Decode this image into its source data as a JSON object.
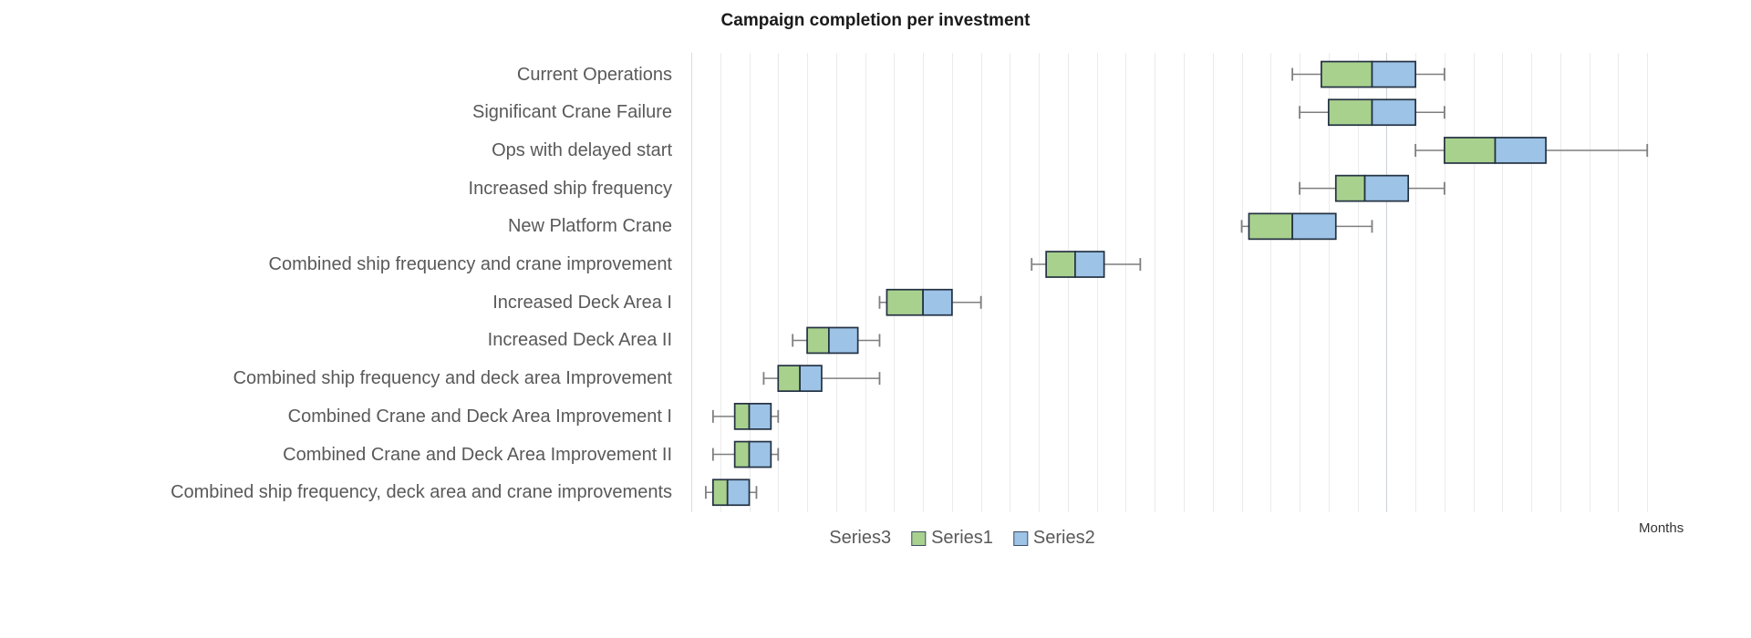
{
  "chart_data": {
    "type": "boxplot",
    "orientation": "horizontal",
    "title": "Campaign completion per investment",
    "xlabel": "Months",
    "x_min": 0,
    "x_max": 34,
    "gridline_step_months": 1,
    "major_gridline_month": 24,
    "grid": true,
    "legend_position": "bottom",
    "categories": [
      "Current Operations",
      "Significant Crane Failure",
      "Ops with delayed start",
      "Increased ship frequency",
      "New Platform Crane",
      "Combined ship frequency and crane improvement",
      "Increased Deck Area I",
      "Increased Deck Area II",
      "Combined ship frequency and deck area Improvement",
      "Combined Crane and Deck Area Improvement I",
      "Combined Crane and Deck Area Improvement II",
      "Combined ship frequency, deck area and crane improvements"
    ],
    "boxes": [
      {
        "low": 20.75,
        "q1": 21.75,
        "median": 23.5,
        "q3": 25.0,
        "high": 26.0
      },
      {
        "low": 21.0,
        "q1": 22.0,
        "median": 23.5,
        "q3": 25.0,
        "high": 26.0
      },
      {
        "low": 25.0,
        "q1": 26.0,
        "median": 27.75,
        "q3": 29.5,
        "high": 33.0
      },
      {
        "low": 21.0,
        "q1": 22.25,
        "median": 23.25,
        "q3": 24.75,
        "high": 26.0
      },
      {
        "low": 19.0,
        "q1": 19.25,
        "median": 20.75,
        "q3": 22.25,
        "high": 23.5
      },
      {
        "low": 11.75,
        "q1": 12.25,
        "median": 13.25,
        "q3": 14.25,
        "high": 15.5
      },
      {
        "low": 6.5,
        "q1": 6.75,
        "median": 8.0,
        "q3": 9.0,
        "high": 10.0
      },
      {
        "low": 3.5,
        "q1": 4.0,
        "median": 4.75,
        "q3": 5.75,
        "high": 6.5
      },
      {
        "low": 2.5,
        "q1": 3.0,
        "median": 3.75,
        "q3": 4.5,
        "high": 6.5
      },
      {
        "low": 0.75,
        "q1": 1.5,
        "median": 2.0,
        "q3": 2.75,
        "high": 3.0
      },
      {
        "low": 0.75,
        "q1": 1.5,
        "median": 2.0,
        "q3": 2.75,
        "high": 3.0
      },
      {
        "low": 0.5,
        "q1": 0.75,
        "median": 1.25,
        "q3": 2.0,
        "high": 2.25
      }
    ],
    "legend": [
      {
        "label": "Series3",
        "swatch": null
      },
      {
        "label": "Series1",
        "swatch": "#a9d18e"
      },
      {
        "label": "Series2",
        "swatch": "#9dc3e6"
      }
    ],
    "colors": {
      "series1_green_fill": "#a9d18e",
      "series2_blue_fill": "#9dc3e6",
      "box_border": "#233142",
      "whisker": "#7f7f7f",
      "gridline": "#ebebeb",
      "gridline_first": "#dcdcdc",
      "gridline_major": "#ccd2da",
      "label_text": "#595959",
      "title_text": "#1a1a1a"
    }
  }
}
